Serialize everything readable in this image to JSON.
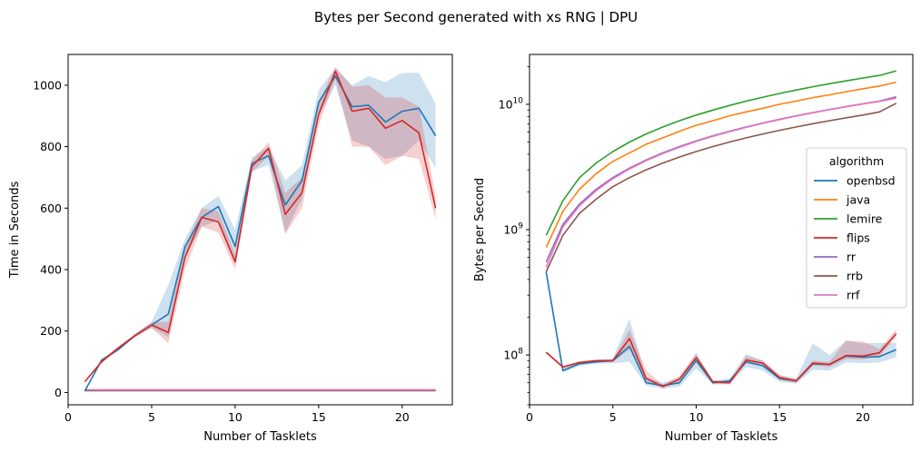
{
  "figure": {
    "title": "Bytes per Second generated with xs RNG | DPU"
  },
  "chart_data": [
    {
      "type": "line",
      "title": "",
      "xlabel": "Number of Tasklets",
      "ylabel": "Time in Seconds",
      "xlim": [
        0,
        23
      ],
      "ylim": [
        -40,
        1100
      ],
      "xticks": [
        0,
        5,
        10,
        15,
        20
      ],
      "yticks": [
        0,
        200,
        400,
        600,
        800,
        1000
      ],
      "grid": false,
      "legend": "none",
      "x": [
        1,
        2,
        3,
        4,
        5,
        6,
        7,
        8,
        9,
        10,
        11,
        12,
        13,
        14,
        15,
        16,
        17,
        18,
        19,
        20,
        21,
        22
      ],
      "series": [
        {
          "name": "openbsd",
          "color": "#1f77b4",
          "values": [
            5,
            105,
            140,
            185,
            220,
            255,
            475,
            570,
            605,
            475,
            745,
            770,
            610,
            690,
            945,
            1030,
            930,
            935,
            880,
            915,
            925,
            835
          ],
          "band_low": [
            3,
            100,
            135,
            180,
            210,
            180,
            440,
            540,
            560,
            420,
            720,
            740,
            520,
            630,
            900,
            1000,
            820,
            800,
            760,
            770,
            820,
            730
          ],
          "band_high": [
            7,
            110,
            145,
            190,
            230,
            350,
            500,
            600,
            640,
            530,
            765,
            800,
            690,
            740,
            985,
            1055,
            1000,
            1030,
            1010,
            1040,
            1040,
            940
          ]
        },
        {
          "name": "flips",
          "color": "#d62728",
          "values": [
            35,
            100,
            145,
            185,
            220,
            195,
            440,
            570,
            555,
            425,
            735,
            795,
            580,
            650,
            905,
            1045,
            915,
            925,
            860,
            885,
            845,
            600
          ],
          "band_low": [
            33,
            95,
            140,
            180,
            210,
            160,
            400,
            540,
            520,
            400,
            715,
            770,
            515,
            600,
            870,
            1020,
            800,
            800,
            740,
            770,
            760,
            565
          ],
          "band_high": [
            37,
            105,
            150,
            190,
            230,
            230,
            475,
            600,
            590,
            450,
            755,
            815,
            650,
            700,
            945,
            1060,
            995,
            1000,
            960,
            960,
            930,
            640
          ]
        },
        {
          "name": "java",
          "color": "#ff7f0e",
          "values": [
            8,
            8,
            8,
            8,
            8,
            8,
            8,
            8,
            8,
            8,
            8,
            8,
            8,
            8,
            8,
            8,
            8,
            8,
            8,
            8,
            8,
            8
          ]
        },
        {
          "name": "lemire",
          "color": "#2ca02c",
          "values": [
            6,
            6,
            6,
            6,
            6,
            6,
            6,
            6,
            6,
            6,
            6,
            6,
            6,
            6,
            6,
            6,
            6,
            6,
            6,
            6,
            6,
            6
          ]
        },
        {
          "name": "rr",
          "color": "#9467bd",
          "values": [
            7,
            7,
            7,
            7,
            7,
            7,
            7,
            7,
            7,
            7,
            7,
            7,
            7,
            7,
            7,
            7,
            7,
            7,
            7,
            7,
            7,
            7
          ]
        },
        {
          "name": "rrb",
          "color": "#8c564b",
          "values": [
            7,
            7,
            7,
            7,
            7,
            7,
            7,
            7,
            7,
            7,
            7,
            7,
            7,
            7,
            7,
            7,
            7,
            7,
            7,
            7,
            7,
            7
          ]
        },
        {
          "name": "rrf",
          "color": "#e377c2",
          "values": [
            9,
            9,
            9,
            9,
            9,
            9,
            9,
            9,
            9,
            9,
            9,
            9,
            9,
            9,
            9,
            9,
            9,
            9,
            9,
            9,
            9,
            9
          ]
        }
      ]
    },
    {
      "type": "line",
      "title": "",
      "xlabel": "Number of Tasklets",
      "ylabel": "Bytes per Second",
      "yscale": "log",
      "xlim": [
        0,
        23
      ],
      "ylim": [
        40000000,
        25000000000
      ],
      "xticks": [
        0,
        5,
        10,
        15,
        20
      ],
      "yticks": [
        100000000,
        1000000000,
        10000000000
      ],
      "ytick_labels": [
        {
          "base": "10",
          "exp": "8"
        },
        {
          "base": "10",
          "exp": "9"
        },
        {
          "base": "10",
          "exp": "10"
        }
      ],
      "grid": false,
      "legend": "center-right",
      "legend_title": "algorithm",
      "x": [
        1,
        2,
        3,
        4,
        5,
        6,
        7,
        8,
        9,
        10,
        11,
        12,
        13,
        14,
        15,
        16,
        17,
        18,
        19,
        20,
        21,
        22
      ],
      "series": [
        {
          "name": "openbsd",
          "color": "#1f77b4",
          "values": [
            460000000.0,
            75000000.0,
            85000000.0,
            88000000.0,
            90000000.0,
            117000000.0,
            60000000.0,
            57000000.0,
            60000000.0,
            90000000.0,
            60000000.0,
            62000000.0,
            88000000.0,
            82000000.0,
            65000000.0,
            62000000.0,
            85000000.0,
            84000000.0,
            98000000.0,
            96000000.0,
            97000000.0,
            110000000.0
          ],
          "band_low": [
            440000000.0,
            72000000.0,
            82000000.0,
            85000000.0,
            86000000.0,
            88000000.0,
            57000000.0,
            54000000.0,
            56000000.0,
            78000000.0,
            58000000.0,
            59000000.0,
            80000000.0,
            75000000.0,
            61000000.0,
            59000000.0,
            76000000.0,
            75000000.0,
            87000000.0,
            86000000.0,
            87000000.0,
            96000000.0
          ],
          "band_high": [
            480000000.0,
            78000000.0,
            88000000.0,
            91000000.0,
            94000000.0,
            195000000.0,
            66000000.0,
            60000000.0,
            66000000.0,
            104000000.0,
            62000000.0,
            65000000.0,
            102000000.0,
            90000000.0,
            69000000.0,
            65000000.0,
            124000000.0,
            100000000.0,
            130000000.0,
            124000000.0,
            125000000.0,
            125000000.0
          ]
        },
        {
          "name": "java",
          "color": "#ff7f0e",
          "values": [
            720000000.0,
            1400000000.0,
            2100000000.0,
            2800000000.0,
            3500000000.0,
            4100000000.0,
            4800000000.0,
            5400000000.0,
            6100000000.0,
            6800000000.0,
            7400000000.0,
            8100000000.0,
            8700000000.0,
            9300000000.0,
            10000000000.0,
            10600000000.0,
            11300000000.0,
            11900000000.0,
            12600000000.0,
            13300000000.0,
            14000000000.0,
            15000000000.0
          ]
        },
        {
          "name": "lemire",
          "color": "#2ca02c",
          "values": [
            900000000.0,
            1700000000.0,
            2600000000.0,
            3400000000.0,
            4200000000.0,
            5000000000.0,
            5800000000.0,
            6600000000.0,
            7400000000.0,
            8200000000.0,
            9000000000.0,
            9800000000.0,
            10600000000.0,
            11400000000.0,
            12200000000.0,
            13000000000.0,
            13800000000.0,
            14600000000.0,
            15400000000.0,
            16200000000.0,
            17000000000.0,
            18500000000.0
          ]
        },
        {
          "name": "flips",
          "color": "#d62728",
          "values": [
            105000000.0,
            80000000.0,
            87000000.0,
            90000000.0,
            90000000.0,
            135000000.0,
            65000000.0,
            56000000.0,
            64000000.0,
            95000000.0,
            61000000.0,
            60000000.0,
            91000000.0,
            86000000.0,
            66000000.0,
            62000000.0,
            86000000.0,
            84000000.0,
            99000000.0,
            98000000.0,
            104000000.0,
            148000000.0
          ],
          "band_low": [
            103000000.0,
            78000000.0,
            85000000.0,
            88000000.0,
            88000000.0,
            110000000.0,
            62000000.0,
            54000000.0,
            61000000.0,
            88000000.0,
            59000000.0,
            58000000.0,
            86000000.0,
            82000000.0,
            63000000.0,
            60000000.0,
            82000000.0,
            80000000.0,
            93000000.0,
            92000000.0,
            98000000.0,
            138000000.0
          ],
          "band_high": [
            107000000.0,
            82000000.0,
            89000000.0,
            92000000.0,
            92000000.0,
            160000000.0,
            75000000.0,
            58000000.0,
            68000000.0,
            102000000.0,
            63000000.0,
            62000000.0,
            98000000.0,
            90000000.0,
            69000000.0,
            64000000.0,
            90000000.0,
            88000000.0,
            130000000.0,
            128000000.0,
            112000000.0,
            160000000.0
          ]
        },
        {
          "name": "rr",
          "color": "#9467bd",
          "values": [
            550000000.0,
            1100000000.0,
            1600000000.0,
            2100000000.0,
            2600000000.0,
            3100000000.0,
            3600000000.0,
            4100000000.0,
            4600000000.0,
            5100000000.0,
            5600000000.0,
            6100000000.0,
            6600000000.0,
            7100000000.0,
            7600000000.0,
            8100000000.0,
            8600000000.0,
            9100000000.0,
            9600000000.0,
            10100000000.0,
            10600000000.0,
            11500000000.0
          ]
        },
        {
          "name": "rrb",
          "color": "#8c564b",
          "values": [
            460000000.0,
            900000000.0,
            1350000000.0,
            1750000000.0,
            2200000000.0,
            2600000000.0,
            3000000000.0,
            3400000000.0,
            3800000000.0,
            4200000000.0,
            4600000000.0,
            5000000000.0,
            5400000000.0,
            5800000000.0,
            6200000000.0,
            6600000000.0,
            7000000000.0,
            7400000000.0,
            7800000000.0,
            8200000000.0,
            8700000000.0,
            10200000000.0
          ]
        },
        {
          "name": "rrf",
          "color": "#e377c2",
          "values": [
            500000000.0,
            1050000000.0,
            1550000000.0,
            2050000000.0,
            2550000000.0,
            3050000000.0,
            3550000000.0,
            4050000000.0,
            4550000000.0,
            5050000000.0,
            5550000000.0,
            6050000000.0,
            6550000000.0,
            7050000000.0,
            7550000000.0,
            8050000000.0,
            8550000000.0,
            9050000000.0,
            9550000000.0,
            10050000000.0,
            10550000000.0,
            11200000000.0
          ]
        }
      ]
    }
  ]
}
